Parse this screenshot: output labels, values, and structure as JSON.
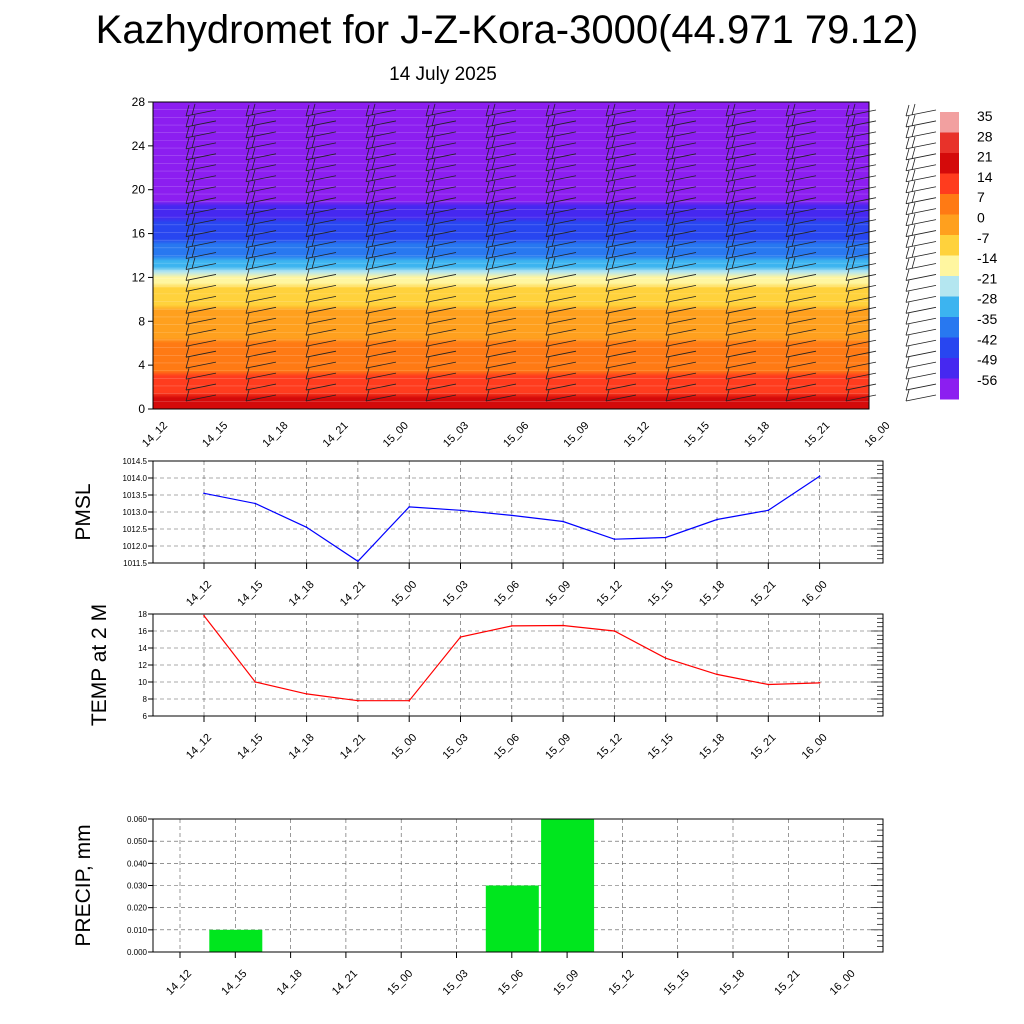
{
  "page": {
    "title": "Kazhydromet for J-Z-Kora-3000(44.971 79.12)",
    "subtitle": "14 July 2025"
  },
  "time_labels": [
    "14_12",
    "14_15",
    "14_18",
    "14_21",
    "15_00",
    "15_03",
    "15_06",
    "15_09",
    "15_12",
    "15_15",
    "15_18",
    "15_21",
    "16_00"
  ],
  "colors": {
    "pmsl_line": "#0000ff",
    "temp_line": "#ff0000",
    "precip_bar": "#00e61e",
    "grid": "#555555",
    "wind_barb": "#222222"
  },
  "chart_data": [
    {
      "id": "cross_section",
      "type": "heatmap",
      "description_source": "vertical time-height section of temperature with wind barbs",
      "x": [
        "14_12",
        "14_15",
        "14_18",
        "14_21",
        "15_00",
        "15_03",
        "15_06",
        "15_09",
        "15_12",
        "15_15",
        "15_18",
        "15_21",
        "16_00"
      ],
      "y_ticks": [
        0,
        4,
        8,
        12,
        16,
        20,
        24,
        28
      ],
      "ylim": [
        0,
        28
      ],
      "colorbar_labels": [
        "35",
        "28",
        "21",
        "14",
        "7",
        "0",
        "-7",
        "-14",
        "-21",
        "-28",
        "-35",
        "-42",
        "-49",
        "-56"
      ],
      "colorbar_stops": [
        "#f2a0a0",
        "#e8322a",
        "#d40a0a",
        "#ff3c1e",
        "#ff7a14",
        "#ffa01e",
        "#ffd23c",
        "#fff6a0",
        "#b4e6f0",
        "#3cb4f0",
        "#2878f0",
        "#2846f0",
        "#4628f0",
        "#8c1ef0"
      ],
      "temperature_profile": [
        {
          "height": 0,
          "value": 25
        },
        {
          "height": 4,
          "value": 12
        },
        {
          "height": 8,
          "value": 3
        },
        {
          "height": 11,
          "value": -6
        },
        {
          "height": 12,
          "value": -14
        },
        {
          "height": 14,
          "value": -30
        },
        {
          "height": 17,
          "value": -42
        },
        {
          "height": 20,
          "value": -56
        },
        {
          "height": 22,
          "value": -60
        },
        {
          "height": 28,
          "value": -62
        }
      ]
    },
    {
      "id": "pmsl",
      "type": "line",
      "ylabel": "PMSL",
      "ylim": [
        1011.5,
        1014.5
      ],
      "y_ticks": [
        "1011.5",
        "1012.0",
        "1012.5",
        "1013.0",
        "1013.5",
        "1014.0",
        "1014.5"
      ],
      "x": [
        "14_12",
        "14_15",
        "14_18",
        "14_21",
        "15_00",
        "15_03",
        "15_06",
        "15_09",
        "15_12",
        "15_15",
        "15_18",
        "15_21",
        "16_00"
      ],
      "values": [
        1013.55,
        1013.25,
        1012.55,
        1011.55,
        1013.15,
        1013.05,
        1012.9,
        1012.72,
        1012.2,
        1012.25,
        1012.78,
        1013.05,
        1014.05
      ]
    },
    {
      "id": "temp2m",
      "type": "line",
      "ylabel": "TEMP at 2 M",
      "ylim": [
        6,
        18
      ],
      "y_ticks": [
        "6",
        "8",
        "10",
        "12",
        "14",
        "16",
        "18"
      ],
      "x": [
        "14_12",
        "14_15",
        "14_18",
        "14_21",
        "15_00",
        "15_03",
        "15_06",
        "15_09",
        "15_12",
        "15_15",
        "15_18",
        "15_21",
        "16_00"
      ],
      "values": [
        17.8,
        10.0,
        8.6,
        7.8,
        7.8,
        15.3,
        16.6,
        16.65,
        16.0,
        12.8,
        10.9,
        9.7,
        9.9
      ]
    },
    {
      "id": "precip",
      "type": "bar",
      "ylabel": "PRECIP, mm",
      "ylim": [
        0,
        0.06
      ],
      "y_ticks": [
        "0.000",
        "0.010",
        "0.020",
        "0.030",
        "0.040",
        "0.050",
        "0.060"
      ],
      "categories": [
        "14_12",
        "14_15",
        "14_18",
        "14_21",
        "15_00",
        "15_03",
        "15_06",
        "15_09",
        "15_12",
        "15_15",
        "15_18",
        "15_21",
        "16_00"
      ],
      "values": [
        0,
        0.01,
        0,
        0,
        0,
        0,
        0.03,
        0.06,
        0,
        0,
        0,
        0,
        0
      ]
    }
  ]
}
